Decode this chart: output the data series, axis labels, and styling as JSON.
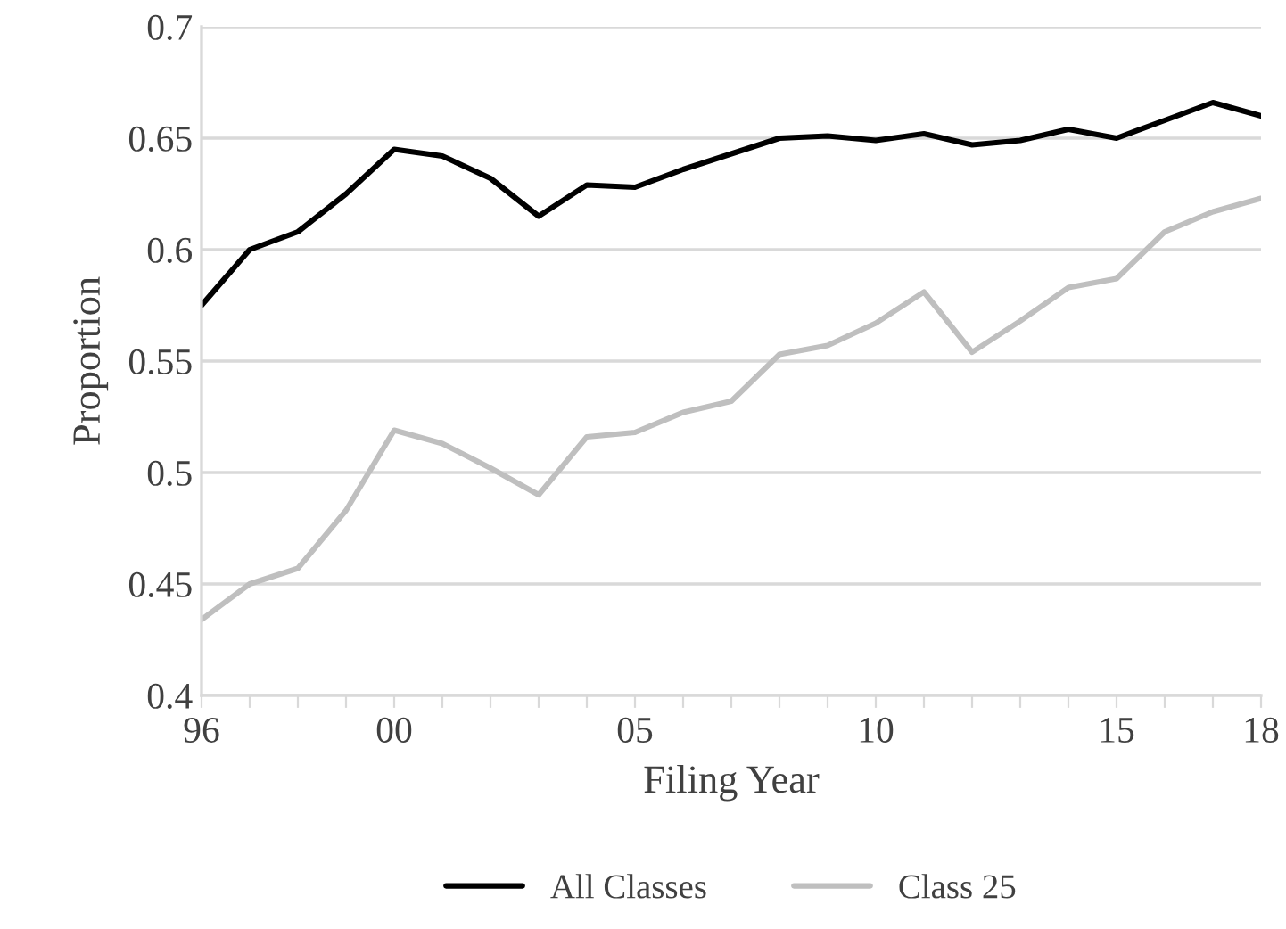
{
  "chart_data": {
    "type": "line",
    "xlabel": "Filing Year",
    "ylabel": "Proportion",
    "x": [
      1996,
      1997,
      1998,
      1999,
      2000,
      2001,
      2002,
      2003,
      2004,
      2005,
      2006,
      2007,
      2008,
      2009,
      2010,
      2011,
      2012,
      2013,
      2014,
      2015,
      2016,
      2017,
      2018
    ],
    "series": [
      {
        "name": "All Classes",
        "color": "#000000",
        "values": [
          0.575,
          0.6,
          0.608,
          0.625,
          0.645,
          0.642,
          0.632,
          0.615,
          0.629,
          0.628,
          0.636,
          0.643,
          0.65,
          0.651,
          0.649,
          0.652,
          0.647,
          0.649,
          0.654,
          0.65,
          0.658,
          0.666,
          0.66
        ]
      },
      {
        "name": "Class 25",
        "color": "#bfbfbf",
        "values": [
          0.434,
          0.45,
          0.457,
          0.483,
          0.519,
          0.513,
          0.502,
          0.49,
          0.516,
          0.518,
          0.527,
          0.532,
          0.553,
          0.557,
          0.567,
          0.581,
          0.554,
          0.568,
          0.583,
          0.587,
          0.608,
          0.617,
          0.623
        ]
      }
    ],
    "xlim": [
      1996,
      2018
    ],
    "xticks": [
      {
        "value": 1996,
        "label": "96"
      },
      {
        "value": 1997,
        "label": null
      },
      {
        "value": 1998,
        "label": null
      },
      {
        "value": 1999,
        "label": null
      },
      {
        "value": 2000,
        "label": "00"
      },
      {
        "value": 2001,
        "label": null
      },
      {
        "value": 2002,
        "label": null
      },
      {
        "value": 2003,
        "label": null
      },
      {
        "value": 2004,
        "label": null
      },
      {
        "value": 2005,
        "label": "05"
      },
      {
        "value": 2006,
        "label": null
      },
      {
        "value": 2007,
        "label": null
      },
      {
        "value": 2008,
        "label": null
      },
      {
        "value": 2009,
        "label": null
      },
      {
        "value": 2010,
        "label": "10"
      },
      {
        "value": 2011,
        "label": null
      },
      {
        "value": 2012,
        "label": null
      },
      {
        "value": 2013,
        "label": null
      },
      {
        "value": 2014,
        "label": null
      },
      {
        "value": 2015,
        "label": "15"
      },
      {
        "value": 2016,
        "label": null
      },
      {
        "value": 2017,
        "label": null
      },
      {
        "value": 2018,
        "label": "18"
      }
    ],
    "ylim": [
      0.4,
      0.7
    ],
    "yticks": [
      0.4,
      0.45,
      0.5,
      0.55,
      0.6,
      0.65,
      0.7
    ],
    "grid": "y",
    "legend": "bottom",
    "line_style": "solid",
    "marker": "none"
  }
}
